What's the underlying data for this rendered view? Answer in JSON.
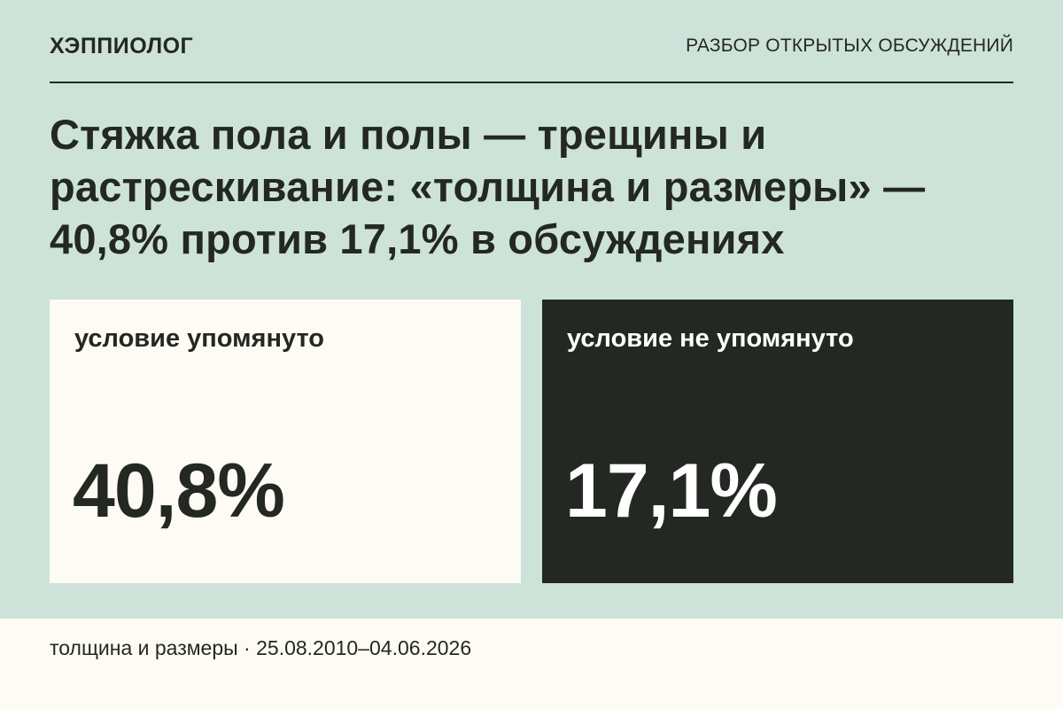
{
  "header": {
    "brand": "ХЭППИОЛОГ",
    "section": "РАЗБОР ОТКРЫТЫХ ОБСУЖДЕНИЙ"
  },
  "title": "Стяжка пола и полы — трещины и растрескивание: «толщина и размеры» — 40,8% против 17,1% в обсуждениях",
  "cards": [
    {
      "label": "условие упомянуто",
      "value": "40,8%",
      "background": "#fdfbf4",
      "text_color": "#242822"
    },
    {
      "label": "условие не упомянуто",
      "value": "17,1%",
      "background": "#242822",
      "text_color": "#ffffff"
    }
  ],
  "footer": {
    "text": "толщина и размеры · 25.08.2010–04.06.2026"
  },
  "colors": {
    "page_background": "#cde3da",
    "dark": "#242822",
    "light": "#fdfbf4"
  }
}
